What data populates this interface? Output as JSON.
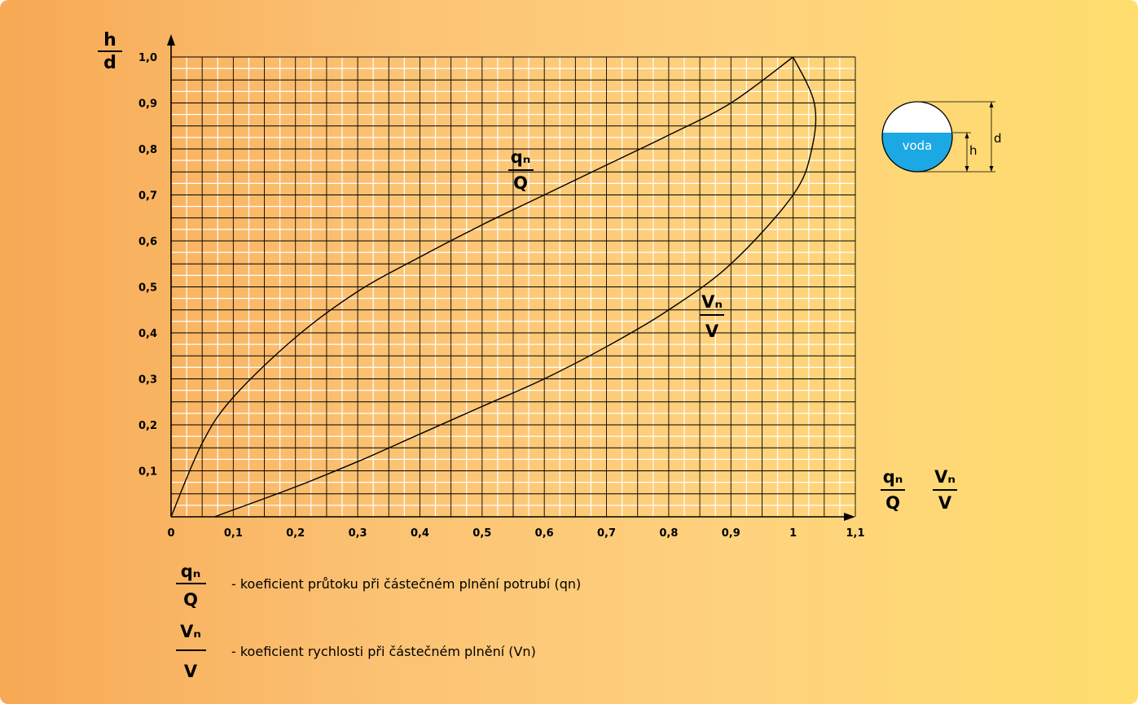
{
  "chart_data": {
    "type": "line",
    "y_axis_label": {
      "numerator": "h",
      "denominator": "d"
    },
    "x_axis_label": [
      {
        "numerator": "qₙ",
        "denominator": "Q"
      },
      {
        "numerator": "Vₙ",
        "denominator": "V"
      }
    ],
    "x_ticks": [
      "0",
      "0,1",
      "0,2",
      "0,3",
      "0,4",
      "0,5",
      "0,6",
      "0,7",
      "0,8",
      "0,9",
      "1",
      "1,1"
    ],
    "y_ticks": [
      "0,1",
      "0,2",
      "0,3",
      "0,4",
      "0,5",
      "0,6",
      "0,7",
      "0,8",
      "0,9",
      "1,0"
    ],
    "xlim": [
      0,
      1.1
    ],
    "ylim": [
      0,
      1.0
    ],
    "grid": true,
    "series": [
      {
        "name": "qn/Q",
        "label": {
          "numerator": "qₙ",
          "denominator": "Q"
        },
        "points": [
          [
            0,
            0
          ],
          [
            0.05,
            0.16
          ],
          [
            0.1,
            0.26
          ],
          [
            0.2,
            0.39
          ],
          [
            0.3,
            0.49
          ],
          [
            0.4,
            0.565
          ],
          [
            0.5,
            0.635
          ],
          [
            0.6,
            0.7
          ],
          [
            0.7,
            0.765
          ],
          [
            0.8,
            0.83
          ],
          [
            0.9,
            0.9
          ],
          [
            1.0,
            1.0
          ]
        ]
      },
      {
        "name": "Vn/V",
        "label": {
          "numerator": "Vₙ",
          "denominator": "V"
        },
        "points": [
          [
            0.07,
            0
          ],
          [
            0.1,
            0.015
          ],
          [
            0.2,
            0.065
          ],
          [
            0.3,
            0.12
          ],
          [
            0.4,
            0.18
          ],
          [
            0.5,
            0.24
          ],
          [
            0.6,
            0.3
          ],
          [
            0.7,
            0.37
          ],
          [
            0.8,
            0.45
          ],
          [
            0.9,
            0.55
          ],
          [
            1.0,
            0.7
          ],
          [
            1.03,
            0.8
          ],
          [
            1.034,
            0.9
          ],
          [
            1.0,
            1.0
          ]
        ]
      }
    ]
  },
  "legend": [
    {
      "numerator": "qₙ",
      "denominator": "Q",
      "text": "- koeficient průtoku při částečném plnění potrubí (qn)"
    },
    {
      "numerator": "Vₙ",
      "denominator": "V",
      "text": "- koeficient rychlosti při částečném plnění (Vn)"
    }
  ],
  "pipe_diagram": {
    "water_label": "voda",
    "h_label": "h",
    "d_label": "d",
    "water_color": "#1ba8e4",
    "fill_ratio": 0.55
  },
  "colors": {
    "grid_major": "#000000",
    "grid_minor": "#ffffff",
    "curve": "#000000"
  }
}
